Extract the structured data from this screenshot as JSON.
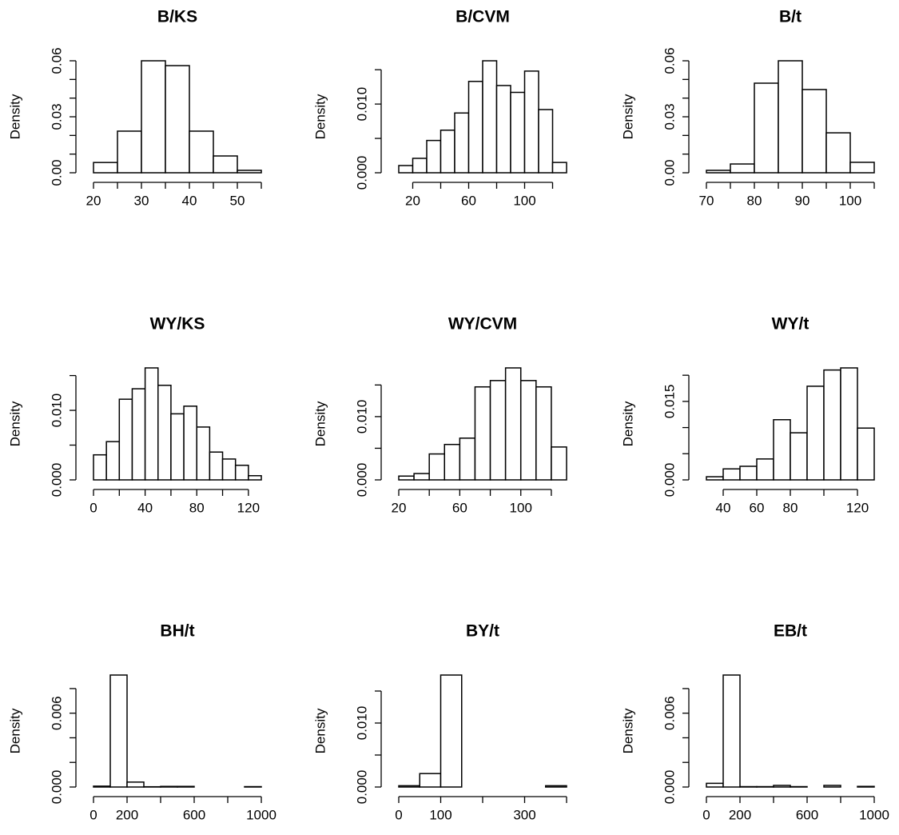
{
  "chart_data": [
    {
      "type": "histogram",
      "title": "B/KS",
      "ylabel": "Density",
      "color": "#ffffff",
      "bins": [
        20,
        25,
        30,
        35,
        40,
        45,
        50,
        55
      ],
      "values": [
        0.0055,
        0.0223,
        0.06,
        0.0574,
        0.0223,
        0.009,
        0.0013
      ],
      "xlim": [
        20,
        55
      ],
      "ylim": [
        0,
        0.06
      ],
      "xticks": [
        20,
        {
          "value": 25,
          "label": null
        },
        30,
        {
          "value": 35,
          "label": null
        },
        40,
        {
          "value": 45,
          "label": null
        },
        50,
        {
          "value": 55,
          "label": null
        }
      ],
      "yticks": [
        {
          "value": 0,
          "label": "0.00"
        },
        {
          "value": 0.01,
          "label": null
        },
        {
          "value": 0.02,
          "label": null
        },
        0.03,
        {
          "value": 0.04,
          "label": null
        },
        {
          "value": 0.05,
          "label": null
        },
        0.06
      ]
    },
    {
      "type": "histogram",
      "title": "B/CVM",
      "ylabel": "Density",
      "color": "#ffffff",
      "bins": [
        10,
        20,
        30,
        40,
        50,
        60,
        70,
        80,
        90,
        100,
        110,
        120,
        130
      ],
      "values": [
        0.00105,
        0.0021,
        0.0047,
        0.0062,
        0.0087,
        0.0133,
        0.0163,
        0.0127,
        0.0117,
        0.0148,
        0.0092,
        0.0015
      ],
      "xlim": [
        10,
        130
      ],
      "ylim": [
        0,
        0.0163
      ],
      "xticks": [
        20,
        {
          "value": 40,
          "label": null
        },
        60,
        {
          "value": 80,
          "label": null
        },
        100,
        {
          "value": 120,
          "label": null
        }
      ],
      "yticks": [
        {
          "value": 0,
          "label": "0.000"
        },
        {
          "value": 0.005,
          "label": null
        },
        {
          "value": 0.01,
          "label": "0.010"
        },
        {
          "value": 0.015,
          "label": null
        }
      ]
    },
    {
      "type": "histogram",
      "title": "B/t",
      "ylabel": "Density",
      "color": "#ffffff",
      "bins": [
        70,
        75,
        80,
        85,
        90,
        95,
        100,
        105
      ],
      "values": [
        0.0013,
        0.0047,
        0.048,
        0.06,
        0.0446,
        0.0214,
        0.0056
      ],
      "xlim": [
        70,
        105
      ],
      "ylim": [
        0,
        0.06
      ],
      "xticks": [
        70,
        {
          "value": 75,
          "label": null
        },
        80,
        {
          "value": 85,
          "label": null
        },
        90,
        {
          "value": 95,
          "label": null
        },
        100,
        {
          "value": 105,
          "label": null
        }
      ],
      "yticks": [
        {
          "value": 0,
          "label": "0.00"
        },
        {
          "value": 0.01,
          "label": null
        },
        {
          "value": 0.02,
          "label": null
        },
        0.03,
        {
          "value": 0.04,
          "label": null
        },
        {
          "value": 0.05,
          "label": null
        },
        0.06
      ]
    },
    {
      "type": "histogram",
      "title": "WY/KS",
      "ylabel": "Density",
      "color": "#ffffff",
      "bins": [
        0,
        10,
        20,
        30,
        40,
        50,
        60,
        70,
        80,
        90,
        100,
        110,
        120,
        130
      ],
      "values": [
        0.0036,
        0.0055,
        0.0116,
        0.0131,
        0.0161,
        0.0136,
        0.0095,
        0.0106,
        0.0076,
        0.004,
        0.003,
        0.0021,
        0.0006
      ],
      "xlim": [
        0,
        130
      ],
      "ylim": [
        0,
        0.0161
      ],
      "xticks": [
        0,
        {
          "value": 20,
          "label": null
        },
        40,
        {
          "value": 60,
          "label": null
        },
        80,
        {
          "value": 100,
          "label": null
        },
        120
      ],
      "yticks": [
        {
          "value": 0,
          "label": "0.000"
        },
        {
          "value": 0.005,
          "label": null
        },
        {
          "value": 0.01,
          "label": "0.010"
        },
        {
          "value": 0.015,
          "label": null
        }
      ]
    },
    {
      "type": "histogram",
      "title": "WY/CVM",
      "ylabel": "Density",
      "color": "#ffffff",
      "bins": [
        20,
        30,
        40,
        50,
        60,
        70,
        80,
        90,
        100,
        110,
        120,
        130
      ],
      "values": [
        0.0006,
        0.001,
        0.0041,
        0.0056,
        0.0066,
        0.0147,
        0.0157,
        0.0177,
        0.0157,
        0.0147,
        0.0052
      ],
      "xlim": [
        20,
        130
      ],
      "ylim": [
        0,
        0.0177
      ],
      "xticks": [
        20,
        {
          "value": 40,
          "label": null
        },
        60,
        {
          "value": 80,
          "label": null
        },
        100,
        {
          "value": 120,
          "label": null
        }
      ],
      "yticks": [
        {
          "value": 0,
          "label": "0.000"
        },
        {
          "value": 0.005,
          "label": null
        },
        {
          "value": 0.01,
          "label": "0.010"
        },
        {
          "value": 0.015,
          "label": null
        }
      ]
    },
    {
      "type": "histogram",
      "title": "WY/t",
      "ylabel": "Density",
      "color": "#ffffff",
      "bins": [
        30,
        40,
        50,
        60,
        70,
        80,
        90,
        100,
        110,
        120,
        130
      ],
      "values": [
        0.0006,
        0.0021,
        0.0026,
        0.004,
        0.0115,
        0.009,
        0.0179,
        0.021,
        0.0214,
        0.0099
      ],
      "xlim": [
        30,
        130
      ],
      "ylim": [
        0,
        0.0214
      ],
      "xticks": [
        40,
        60,
        80,
        {
          "value": 100,
          "label": null
        },
        120
      ],
      "yticks": [
        {
          "value": 0,
          "label": "0.000"
        },
        {
          "value": 0.005,
          "label": null
        },
        {
          "value": 0.01,
          "label": null
        },
        0.015,
        {
          "value": 0.02,
          "label": null
        }
      ]
    },
    {
      "type": "histogram",
      "title": "BH/t",
      "ylabel": "Density",
      "color": "#ffffff",
      "bins": [
        0,
        100,
        200,
        300,
        400,
        500,
        600,
        700,
        800,
        900,
        1000
      ],
      "values": [
        7e-05,
        0.0091,
        0.0004,
        2e-05,
        5e-05,
        5e-05,
        0,
        0,
        0,
        3e-05
      ],
      "xlim": [
        0,
        1000
      ],
      "ylim": [
        0,
        0.0091
      ],
      "xticks": [
        0,
        200,
        {
          "value": 400,
          "label": null
        },
        600,
        {
          "value": 800,
          "label": null
        },
        1000
      ],
      "yticks": [
        {
          "value": 0,
          "label": "0.000"
        },
        {
          "value": 0.002,
          "label": null
        },
        {
          "value": 0.004,
          "label": null
        },
        0.006,
        {
          "value": 0.008,
          "label": null
        }
      ]
    },
    {
      "type": "histogram",
      "title": "BY/t",
      "ylabel": "Density",
      "color": "#ffffff",
      "bins": [
        0,
        50,
        100,
        150,
        200,
        250,
        300,
        350,
        400
      ],
      "values": [
        0.0002,
        0.0021,
        0.0175,
        0,
        0,
        0,
        0,
        0.0002
      ],
      "xlim": [
        0,
        400
      ],
      "ylim": [
        0,
        0.0175
      ],
      "xticks": [
        0,
        100,
        {
          "value": 200,
          "label": null
        },
        300,
        {
          "value": 400,
          "label": null
        }
      ],
      "yticks": [
        {
          "value": 0,
          "label": "0.000"
        },
        {
          "value": 0.005,
          "label": null
        },
        {
          "value": 0.01,
          "label": "0.010"
        },
        {
          "value": 0.015,
          "label": null
        }
      ]
    },
    {
      "type": "histogram",
      "title": "EB/t",
      "ylabel": "Density",
      "color": "#ffffff",
      "bins": [
        0,
        100,
        200,
        300,
        400,
        500,
        600,
        700,
        800,
        900,
        1000
      ],
      "values": [
        0.0003,
        0.0091,
        3e-05,
        3e-05,
        0.00013,
        3e-05,
        0,
        0.00013,
        0,
        5e-05
      ],
      "xlim": [
        0,
        1000
      ],
      "ylim": [
        0,
        0.0091
      ],
      "xticks": [
        0,
        200,
        {
          "value": 400,
          "label": null
        },
        600,
        {
          "value": 800,
          "label": null
        },
        1000
      ],
      "yticks": [
        {
          "value": 0,
          "label": "0.000"
        },
        {
          "value": 0.002,
          "label": null
        },
        {
          "value": 0.004,
          "label": null
        },
        0.006,
        {
          "value": 0.008,
          "label": null
        }
      ]
    }
  ]
}
